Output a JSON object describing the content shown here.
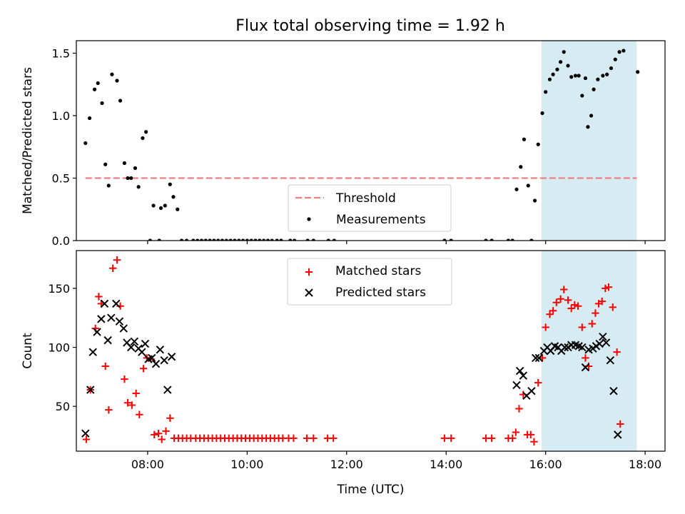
{
  "chart_data": [
    {
      "type": "scatter",
      "title": "Flux total observing time = 1.92 h",
      "xlabel": "",
      "ylabel": "Matched/Predicted stars",
      "xlim": [
        "06:34",
        "18:24"
      ],
      "ylim": [
        0,
        1.6
      ],
      "yticks": [
        0.0,
        0.5,
        1.0,
        1.5
      ],
      "ytick_labels": [
        "0.0",
        "0.5",
        "1.0",
        "1.5"
      ],
      "xticks": [
        "08:00",
        "10:00",
        "12:00",
        "14:00",
        "16:00",
        "18:00"
      ],
      "xtick_labels_shown": false,
      "legend": [
        "Threshold",
        "Measurements"
      ],
      "legend_position": "lower center",
      "highlight_span": {
        "x": [
          "15:55",
          "17:50"
        ],
        "color": "#add8e6"
      },
      "threshold": {
        "label": "Threshold",
        "y": 0.5,
        "x": [
          "06:45",
          "17:50"
        ],
        "color": "#f08080",
        "style": "dashed"
      },
      "series": [
        {
          "name": "Measurements",
          "color": "#000000",
          "marker": "dot",
          "points": [
            [
              "06:45",
              0.78
            ],
            [
              "06:50",
              0.98
            ],
            [
              "06:56",
              1.21
            ],
            [
              "07:00",
              1.26
            ],
            [
              "07:05",
              1.1
            ],
            [
              "07:09",
              0.61
            ],
            [
              "07:13",
              0.44
            ],
            [
              "07:17",
              1.33
            ],
            [
              "07:23",
              1.28
            ],
            [
              "07:27",
              1.12
            ],
            [
              "07:32",
              0.62
            ],
            [
              "07:36",
              0.5
            ],
            [
              "07:40",
              0.5
            ],
            [
              "07:45",
              0.58
            ],
            [
              "07:49",
              0.43
            ],
            [
              "07:54",
              0.82
            ],
            [
              "07:58",
              0.87
            ],
            [
              "08:03",
              0.0
            ],
            [
              "08:07",
              0.28
            ],
            [
              "08:14",
              0.0
            ],
            [
              "08:16",
              0.26
            ],
            [
              "08:21",
              0.28
            ],
            [
              "08:27",
              0.45
            ],
            [
              "08:31",
              0.35
            ],
            [
              "08:36",
              0.25
            ],
            [
              "08:41",
              0.0
            ],
            [
              "08:47",
              0.0
            ],
            [
              "08:55",
              0.0
            ],
            [
              "09:00",
              0.0
            ],
            [
              "09:05",
              0.0
            ],
            [
              "09:10",
              0.0
            ],
            [
              "09:15",
              0.0
            ],
            [
              "09:20",
              0.0
            ],
            [
              "09:25",
              0.0
            ],
            [
              "09:30",
              0.0
            ],
            [
              "09:35",
              0.0
            ],
            [
              "09:40",
              0.0
            ],
            [
              "09:45",
              0.0
            ],
            [
              "09:50",
              0.0
            ],
            [
              "09:55",
              0.0
            ],
            [
              "10:00",
              0.0
            ],
            [
              "10:05",
              0.0
            ],
            [
              "10:10",
              0.0
            ],
            [
              "10:15",
              0.0
            ],
            [
              "10:20",
              0.0
            ],
            [
              "10:25",
              0.0
            ],
            [
              "10:30",
              0.0
            ],
            [
              "10:36",
              0.0
            ],
            [
              "10:41",
              0.0
            ],
            [
              "10:52",
              0.0
            ],
            [
              "10:57",
              0.0
            ],
            [
              "11:13",
              0.0
            ],
            [
              "11:20",
              0.0
            ],
            [
              "11:38",
              0.0
            ],
            [
              "11:45",
              0.0
            ],
            [
              "13:58",
              0.0
            ],
            [
              "14:06",
              0.0
            ],
            [
              "14:48",
              0.0
            ],
            [
              "14:55",
              0.0
            ],
            [
              "15:15",
              0.0
            ],
            [
              "15:20",
              0.0
            ],
            [
              "15:43",
              0.0
            ],
            [
              "15:25",
              0.41
            ],
            [
              "15:30",
              0.59
            ],
            [
              "15:34",
              0.81
            ],
            [
              "15:39",
              0.44
            ],
            [
              "15:47",
              0.32
            ],
            [
              "15:51",
              0.77
            ],
            [
              "15:56",
              1.02
            ],
            [
              "16:00",
              1.19
            ],
            [
              "16:05",
              1.29
            ],
            [
              "16:09",
              1.33
            ],
            [
              "16:14",
              1.37
            ],
            [
              "16:18",
              1.43
            ],
            [
              "16:22",
              1.51
            ],
            [
              "16:27",
              1.4
            ],
            [
              "16:31",
              1.31
            ],
            [
              "16:36",
              1.32
            ],
            [
              "16:40",
              1.32
            ],
            [
              "16:44",
              1.16
            ],
            [
              "16:48",
              1.3
            ],
            [
              "16:51",
              0.91
            ],
            [
              "16:55",
              1.0
            ],
            [
              "16:58",
              1.21
            ],
            [
              "17:03",
              1.29
            ],
            [
              "17:09",
              1.32
            ],
            [
              "17:14",
              1.33
            ],
            [
              "17:19",
              1.38
            ],
            [
              "17:24",
              1.45
            ],
            [
              "17:29",
              1.51
            ],
            [
              "17:34",
              1.52
            ],
            [
              "17:51",
              1.35
            ]
          ]
        }
      ]
    },
    {
      "type": "scatter",
      "title": "",
      "xlabel": "Time (UTC)",
      "ylabel": "Count",
      "xlim": [
        "06:34",
        "18:24"
      ],
      "ylim": [
        12,
        182
      ],
      "yticks": [
        50,
        100,
        150
      ],
      "ytick_labels": [
        "50",
        "100",
        "150"
      ],
      "xticks": [
        "08:00",
        "10:00",
        "12:00",
        "14:00",
        "16:00",
        "18:00"
      ],
      "xtick_labels": [
        "08:00",
        "10:00",
        "12:00",
        "14:00",
        "16:00",
        "18:00"
      ],
      "legend": [
        "Matched stars",
        "Predicted stars"
      ],
      "legend_position": "upper center",
      "highlight_span": {
        "x": [
          "15:55",
          "17:50"
        ],
        "color": "#add8e6"
      },
      "series": [
        {
          "name": "Matched stars",
          "color": "#ff0000",
          "marker": "plus",
          "points": [
            [
              "06:46",
              22
            ],
            [
              "06:51",
              64
            ],
            [
              "06:57",
              116
            ],
            [
              "07:01",
              143
            ],
            [
              "07:04",
              137
            ],
            [
              "07:09",
              84
            ],
            [
              "07:13",
              47
            ],
            [
              "07:18",
              167
            ],
            [
              "07:23",
              174
            ],
            [
              "07:27",
              135
            ],
            [
              "07:32",
              73
            ],
            [
              "07:36",
              53
            ],
            [
              "07:41",
              51
            ],
            [
              "07:46",
              61
            ],
            [
              "07:50",
              43
            ],
            [
              "07:55",
              82
            ],
            [
              "07:59",
              91
            ],
            [
              "08:04",
              90
            ],
            [
              "08:08",
              26
            ],
            [
              "08:13",
              27
            ],
            [
              "08:17",
              22
            ],
            [
              "08:22",
              29
            ],
            [
              "08:27",
              40
            ],
            [
              "08:32",
              23
            ],
            [
              "08:37",
              23
            ],
            [
              "08:42",
              23
            ],
            [
              "08:47",
              23
            ],
            [
              "08:52",
              23
            ],
            [
              "08:58",
              23
            ],
            [
              "09:03",
              23
            ],
            [
              "09:08",
              23
            ],
            [
              "09:13",
              23
            ],
            [
              "09:18",
              23
            ],
            [
              "09:23",
              23
            ],
            [
              "09:28",
              23
            ],
            [
              "09:33",
              23
            ],
            [
              "09:38",
              23
            ],
            [
              "09:43",
              23
            ],
            [
              "09:48",
              23
            ],
            [
              "09:53",
              23
            ],
            [
              "09:58",
              23
            ],
            [
              "10:03",
              23
            ],
            [
              "10:08",
              23
            ],
            [
              "10:13",
              23
            ],
            [
              "10:18",
              23
            ],
            [
              "10:23",
              23
            ],
            [
              "10:28",
              23
            ],
            [
              "10:33",
              23
            ],
            [
              "10:38",
              23
            ],
            [
              "10:43",
              23
            ],
            [
              "10:50",
              23
            ],
            [
              "10:56",
              23
            ],
            [
              "11:12",
              23
            ],
            [
              "11:20",
              23
            ],
            [
              "11:37",
              23
            ],
            [
              "11:44",
              23
            ],
            [
              "13:58",
              23
            ],
            [
              "14:06",
              23
            ],
            [
              "14:48",
              23
            ],
            [
              "14:55",
              23
            ],
            [
              "15:15",
              23
            ],
            [
              "15:20",
              23
            ],
            [
              "15:24",
              28
            ],
            [
              "15:28",
              48
            ],
            [
              "15:33",
              60
            ],
            [
              "15:38",
              26
            ],
            [
              "15:42",
              26
            ],
            [
              "15:46",
              20
            ],
            [
              "15:51",
              70
            ],
            [
              "15:56",
              91
            ],
            [
              "16:00",
              117
            ],
            [
              "16:05",
              128
            ],
            [
              "16:09",
              131
            ],
            [
              "16:13",
              138
            ],
            [
              "16:18",
              141
            ],
            [
              "16:22",
              149
            ],
            [
              "16:27",
              140
            ],
            [
              "16:31",
              133
            ],
            [
              "16:35",
              136
            ],
            [
              "16:39",
              135
            ],
            [
              "16:44",
              117
            ],
            [
              "16:48",
              91
            ],
            [
              "16:52",
              84
            ],
            [
              "16:56",
              120
            ],
            [
              "17:00",
              129
            ],
            [
              "17:04",
              137
            ],
            [
              "17:08",
              139
            ],
            [
              "17:12",
              150
            ],
            [
              "17:16",
              151
            ],
            [
              "17:21",
              134
            ],
            [
              "17:26",
              96
            ],
            [
              "17:30",
              35
            ]
          ]
        },
        {
          "name": "Predicted stars",
          "color": "#000000",
          "marker": "x",
          "points": [
            [
              "06:45",
              27
            ],
            [
              "06:51",
              64
            ],
            [
              "06:54",
              96
            ],
            [
              "06:59",
              113
            ],
            [
              "07:04",
              124
            ],
            [
              "07:08",
              137
            ],
            [
              "07:12",
              106
            ],
            [
              "07:16",
              125
            ],
            [
              "07:22",
              137
            ],
            [
              "07:26",
              122
            ],
            [
              "07:31",
              116
            ],
            [
              "07:35",
              104
            ],
            [
              "07:40",
              100
            ],
            [
              "07:44",
              105
            ],
            [
              "07:49",
              99
            ],
            [
              "07:53",
              96
            ],
            [
              "07:57",
              103
            ],
            [
              "08:01",
              90
            ],
            [
              "08:05",
              91
            ],
            [
              "08:10",
              86
            ],
            [
              "08:15",
              98
            ],
            [
              "08:20",
              89
            ],
            [
              "08:24",
              64
            ],
            [
              "08:29",
              92
            ],
            [
              "15:25",
              68
            ],
            [
              "15:29",
              80
            ],
            [
              "15:33",
              76
            ],
            [
              "15:37",
              59
            ],
            [
              "15:43",
              63
            ],
            [
              "15:48",
              91
            ],
            [
              "15:52",
              91
            ],
            [
              "15:58",
              97
            ],
            [
              "16:02",
              100
            ],
            [
              "16:06",
              97
            ],
            [
              "16:11",
              101
            ],
            [
              "16:15",
              100
            ],
            [
              "16:19",
              97
            ],
            [
              "16:23",
              100
            ],
            [
              "16:27",
              100
            ],
            [
              "16:31",
              102
            ],
            [
              "16:36",
              102
            ],
            [
              "16:40",
              101
            ],
            [
              "16:44",
              100
            ],
            [
              "16:48",
              83
            ],
            [
              "16:52",
              98
            ],
            [
              "16:57",
              99
            ],
            [
              "17:01",
              101
            ],
            [
              "17:05",
              103
            ],
            [
              "17:09",
              109
            ],
            [
              "17:13",
              104
            ],
            [
              "17:18",
              89
            ],
            [
              "17:22",
              63
            ],
            [
              "17:27",
              26
            ]
          ]
        }
      ]
    }
  ]
}
